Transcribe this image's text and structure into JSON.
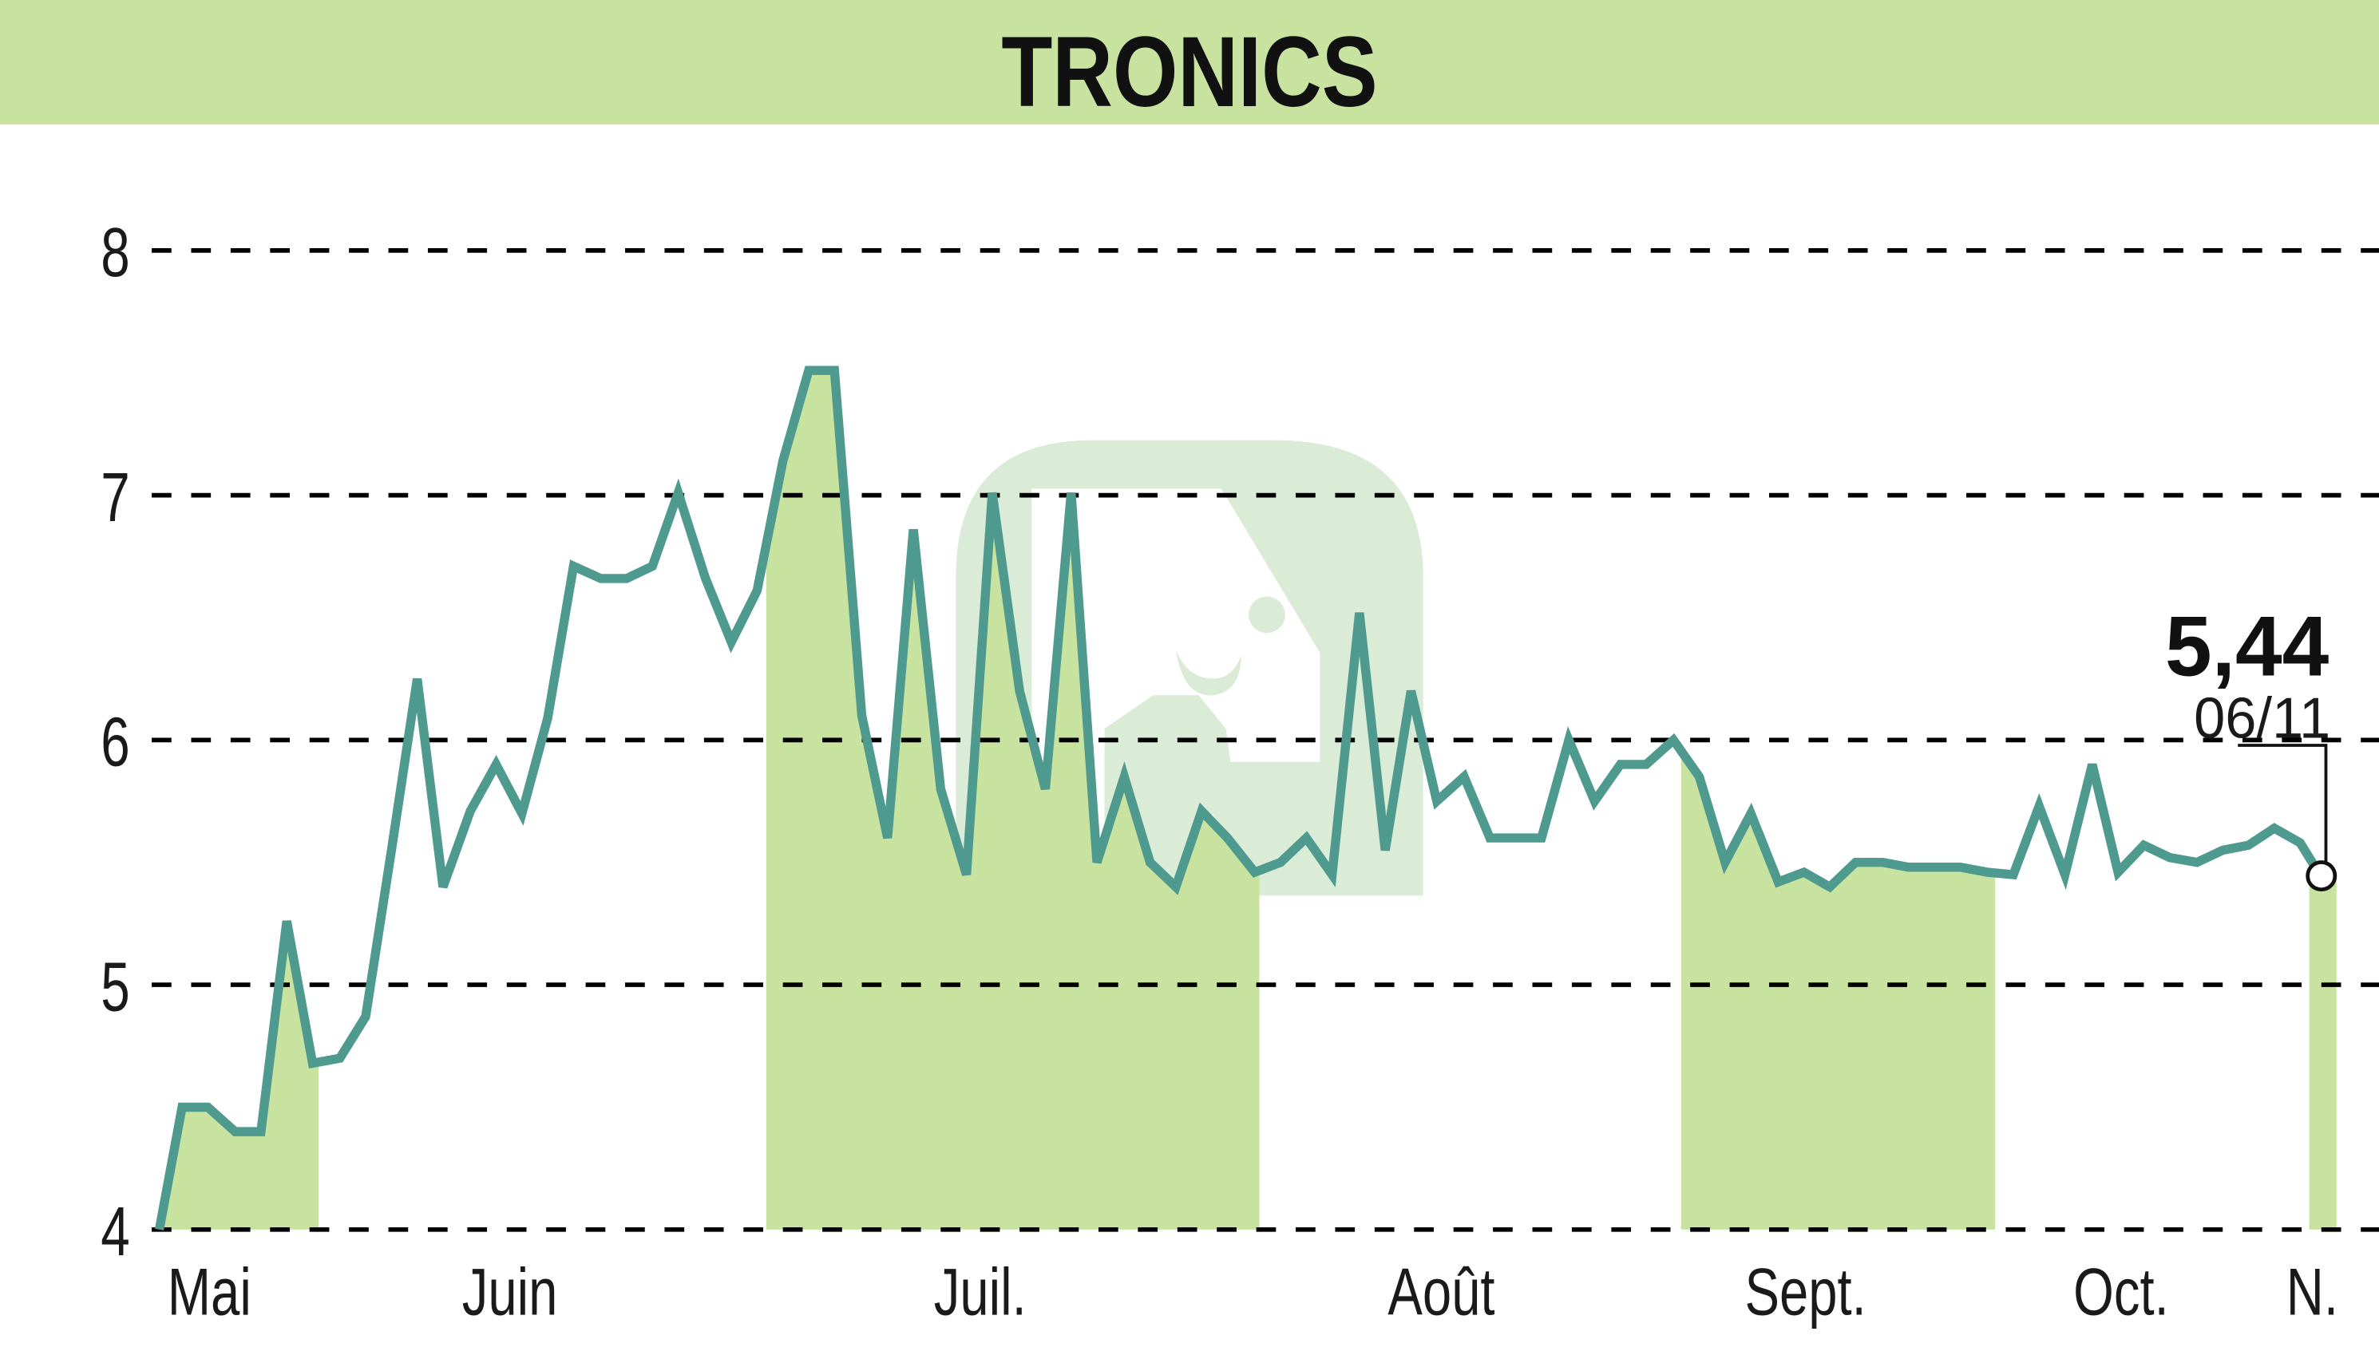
{
  "header": {
    "title": "TRONICS",
    "background_color": "#c8e2a0"
  },
  "last_value": {
    "value_label": "5,44",
    "date_label": "06/11"
  },
  "colors": {
    "line": "#4e9a8e",
    "fill": "#c8e2a0",
    "grid": "#000000",
    "watermark": "#cfe4cc"
  },
  "chart_data": {
    "type": "line",
    "title": "TRONICS",
    "xlabel": "",
    "ylabel": "",
    "ylim": [
      4,
      8
    ],
    "yticks": [
      4,
      5,
      6,
      7,
      8
    ],
    "grid": "horizontal dashed",
    "month_labels": [
      "Mai",
      "Juin",
      "Juil.",
      "Août",
      "Sept.",
      "Oct.",
      "N."
    ],
    "month_label_x": [
      138,
      336,
      646,
      950,
      1190,
      1398,
      1524
    ],
    "shaded_month_ranges": [
      [
        105,
        210
      ],
      [
        505,
        830
      ],
      [
        1108,
        1315
      ],
      [
        1522,
        1540
      ]
    ],
    "annotation": {
      "text": "5,44",
      "sub": "06/11"
    },
    "x": [
      105,
      120,
      137,
      155,
      172,
      189,
      206,
      224,
      241,
      258,
      275,
      292,
      310,
      327,
      344,
      361,
      378,
      396,
      413,
      430,
      447,
      465,
      482,
      499,
      516,
      533,
      550,
      568,
      585,
      602,
      620,
      637,
      654,
      672,
      689,
      706,
      723,
      741,
      758,
      775,
      792,
      809,
      827,
      844,
      861,
      878,
      896,
      913,
      930,
      947,
      965,
      982,
      999,
      1016,
      1034,
      1051,
      1068,
      1085,
      1103,
      1120,
      1137,
      1154,
      1172,
      1189,
      1206,
      1223,
      1241,
      1258,
      1275,
      1292,
      1310,
      1327,
      1344,
      1361,
      1379,
      1396,
      1413,
      1430,
      1448,
      1465,
      1482,
      1499,
      1516,
      1530
    ],
    "values": [
      4.0,
      4.5,
      4.5,
      4.4,
      4.4,
      5.26,
      4.68,
      4.7,
      4.87,
      5.55,
      6.25,
      5.4,
      5.71,
      5.9,
      5.7,
      6.09,
      6.71,
      6.66,
      6.66,
      6.71,
      7.01,
      6.66,
      6.4,
      6.61,
      7.14,
      7.51,
      7.51,
      6.1,
      5.6,
      6.86,
      5.8,
      5.45,
      7.01,
      6.2,
      5.8,
      7.01,
      5.5,
      5.85,
      5.5,
      5.4,
      5.71,
      5.6,
      5.46,
      5.5,
      5.6,
      5.45,
      6.52,
      5.55,
      6.2,
      5.75,
      5.85,
      5.6,
      5.6,
      5.6,
      6.0,
      5.75,
      5.9,
      5.9,
      6.0,
      5.85,
      5.5,
      5.7,
      5.42,
      5.46,
      5.4,
      5.5,
      5.5,
      5.48,
      5.48,
      5.48,
      5.46,
      5.45,
      5.73,
      5.45,
      5.9,
      5.46,
      5.57,
      5.52,
      5.5,
      5.55,
      5.57,
      5.64,
      5.58,
      5.44
    ]
  }
}
